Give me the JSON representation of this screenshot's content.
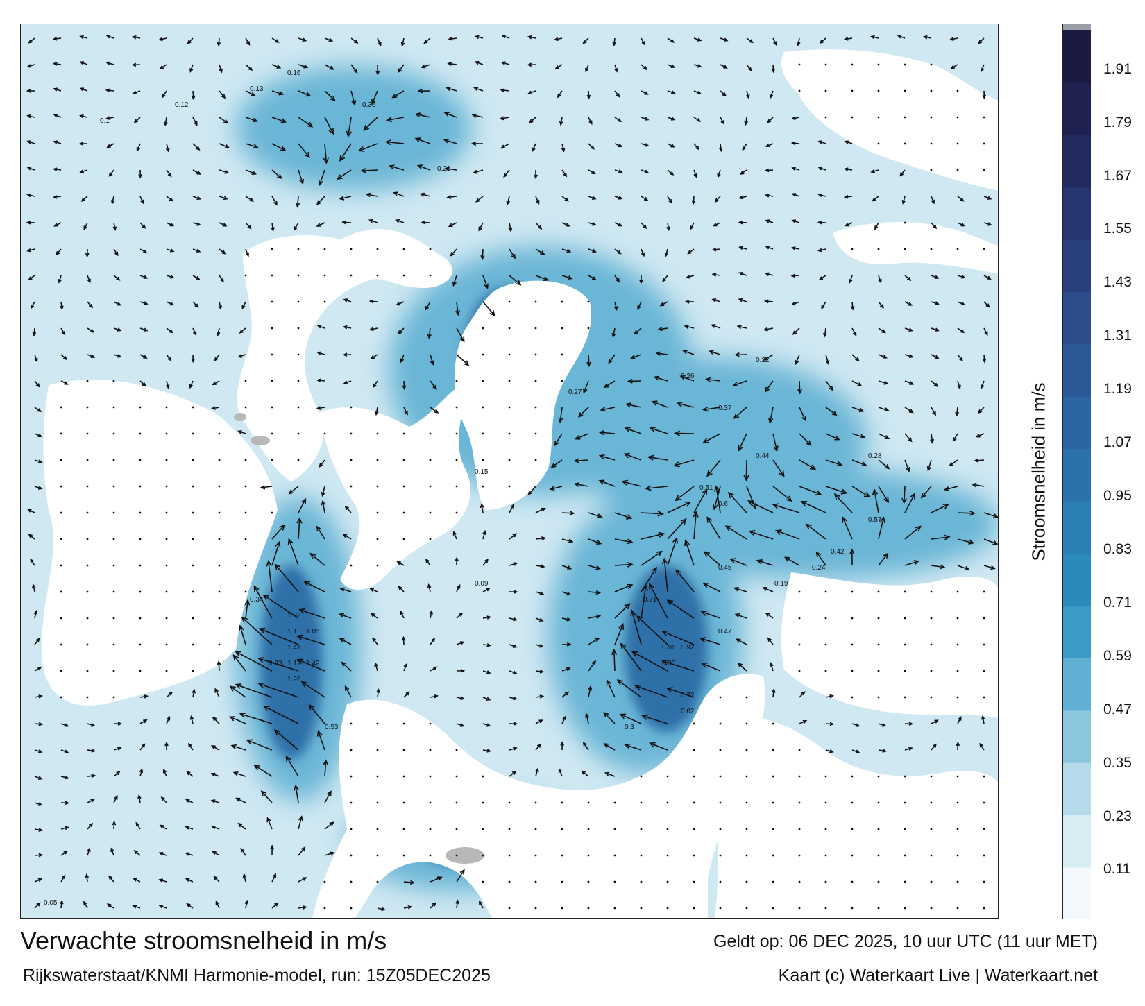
{
  "title": "Verwachte stroomsnelheid in m/s",
  "valid_time": "Geldt op: 06 DEC 2025, 10 uur UTC (11 uur MET)",
  "model_run": "Rijkswaterstaat/KNMI Harmonie-model, run: 15Z05DEC2025",
  "credit": "Kaart (c) Waterkaart Live | Waterkaart.net",
  "colorbar": {
    "title": "Stroomsnelheid in m/s",
    "ticks": [
      "1.91",
      "1.79",
      "1.67",
      "1.55",
      "1.43",
      "1.31",
      "1.19",
      "1.07",
      "0.95",
      "0.83",
      "0.71",
      "0.59",
      "0.47",
      "0.35",
      "0.23",
      "0.11"
    ],
    "min": 0.0,
    "max": 2.0,
    "colors": [
      "#f3f9fc",
      "#d9edf5",
      "#b5dbeb",
      "#8cc6df",
      "#5fb0d2",
      "#3a9cc6",
      "#2a8bbb",
      "#2a7fb5",
      "#2b72ab",
      "#2c65a2",
      "#2d5897",
      "#2c4c8b",
      "#2a407d",
      "#273570",
      "#232a60",
      "#1f2250",
      "#1b1a42"
    ],
    "top_color": "#9aa0a6"
  },
  "map": {
    "sea_colors": {
      "low": "#cfe8f2",
      "mid": "#6bb6d6",
      "high": "#2e6fa8",
      "land": "#ffffff",
      "island": "#b8b8b8"
    },
    "speed_labels": [
      {
        "text": "0.21",
        "v": 0.21
      },
      {
        "text": "0.16",
        "v": 0.16
      },
      {
        "text": "0.28",
        "v": 0.28
      },
      {
        "text": "0.27",
        "v": 0.27
      },
      {
        "text": "0.13",
        "v": 0.13
      },
      {
        "text": "0.12",
        "v": 0.12
      },
      {
        "text": "0.1",
        "v": 0.1
      },
      {
        "text": "0.22",
        "v": 0.22
      },
      {
        "text": "0.15",
        "v": 0.15
      },
      {
        "text": "0.44",
        "v": 0.44
      },
      {
        "text": "0.51",
        "v": 0.51
      },
      {
        "text": "0.53",
        "v": 0.53
      },
      {
        "text": "0.57",
        "v": 0.57
      },
      {
        "text": "0.47",
        "v": 0.47
      },
      {
        "text": "0.37",
        "v": 0.37
      },
      {
        "text": "0.34",
        "v": 0.34
      },
      {
        "text": "0.62",
        "v": 0.62
      },
      {
        "text": "0.71",
        "v": 0.71
      },
      {
        "text": "0.96",
        "v": 0.96
      },
      {
        "text": "1.05",
        "v": 1.05
      },
      {
        "text": "1.1",
        "v": 1.1
      },
      {
        "text": "1.17",
        "v": 1.17
      },
      {
        "text": "1.02",
        "v": 1.02
      },
      {
        "text": "0.93",
        "v": 0.93
      },
      {
        "text": "0.83",
        "v": 0.83
      },
      {
        "text": "0.72",
        "v": 0.72
      },
      {
        "text": "1.41",
        "v": 1.41
      },
      {
        "text": "1.26",
        "v": 1.26
      },
      {
        "text": "1.42",
        "v": 1.42
      },
      {
        "text": "0.92",
        "v": 0.92
      },
      {
        "text": "0.6",
        "v": 0.6
      },
      {
        "text": "0.45",
        "v": 0.45
      },
      {
        "text": "0.36",
        "v": 0.36
      },
      {
        "text": "0.42",
        "v": 0.42
      },
      {
        "text": "0.24",
        "v": 0.24
      },
      {
        "text": "0.19",
        "v": 0.19
      },
      {
        "text": "0.09",
        "v": 0.09
      },
      {
        "text": "0.05",
        "v": 0.05
      },
      {
        "text": "0.3",
        "v": 0.3
      },
      {
        "text": "0.26",
        "v": 0.26
      }
    ]
  }
}
